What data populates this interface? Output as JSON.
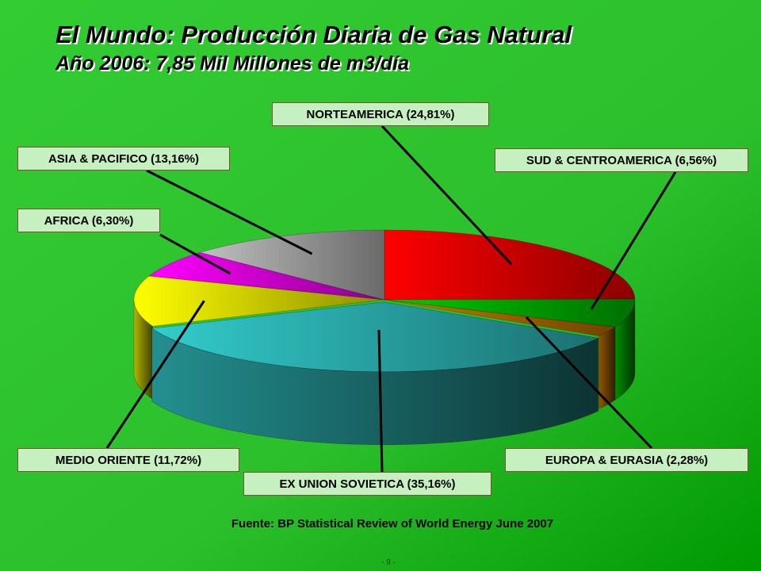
{
  "title": "El Mundo: Producción Diaria de Gas Natural",
  "subtitle": "Año 2006:  7,85 Mil Millones de m3/día",
  "source": "Fuente: BP Statistical Review of World Energy June 2007",
  "page_number": "- 9 -",
  "chart_data": {
    "type": "pie",
    "style": "3d-exploded",
    "unit": "%",
    "slices": [
      {
        "key": "norteamerica",
        "label": "NORTEAMERICA (24,81%)",
        "value": 24.81,
        "color": "#ff0000"
      },
      {
        "key": "sud_centroamerica",
        "label": "SUD & CENTROAMERICA (6,56%)",
        "value": 6.56,
        "color": "#00cc00"
      },
      {
        "key": "europa_eurasia",
        "label": "EUROPA & EURASIA (2,28%)",
        "value": 2.28,
        "color": "#cc7a00"
      },
      {
        "key": "ex_union_sovietica",
        "label": "EX UNION SOVIETICA (35,16%)",
        "value": 35.16,
        "color": "#33cccc"
      },
      {
        "key": "medio_oriente",
        "label": "MEDIO ORIENTE (11,72%)",
        "value": 11.72,
        "color": "#ffff00"
      },
      {
        "key": "africa",
        "label": "AFRICA (6,30%)",
        "value": 6.3,
        "color": "#ff00ff"
      },
      {
        "key": "asia_pacifico",
        "label": "ASIA & PACIFICO (13,16%)",
        "value": 13.16,
        "color": "#c0c0c0"
      }
    ]
  },
  "colors": {
    "background_light": "#33cc33",
    "background_dark": "#009900",
    "label_fill": "#c7f0c0",
    "label_border": "#8a4a3a"
  }
}
